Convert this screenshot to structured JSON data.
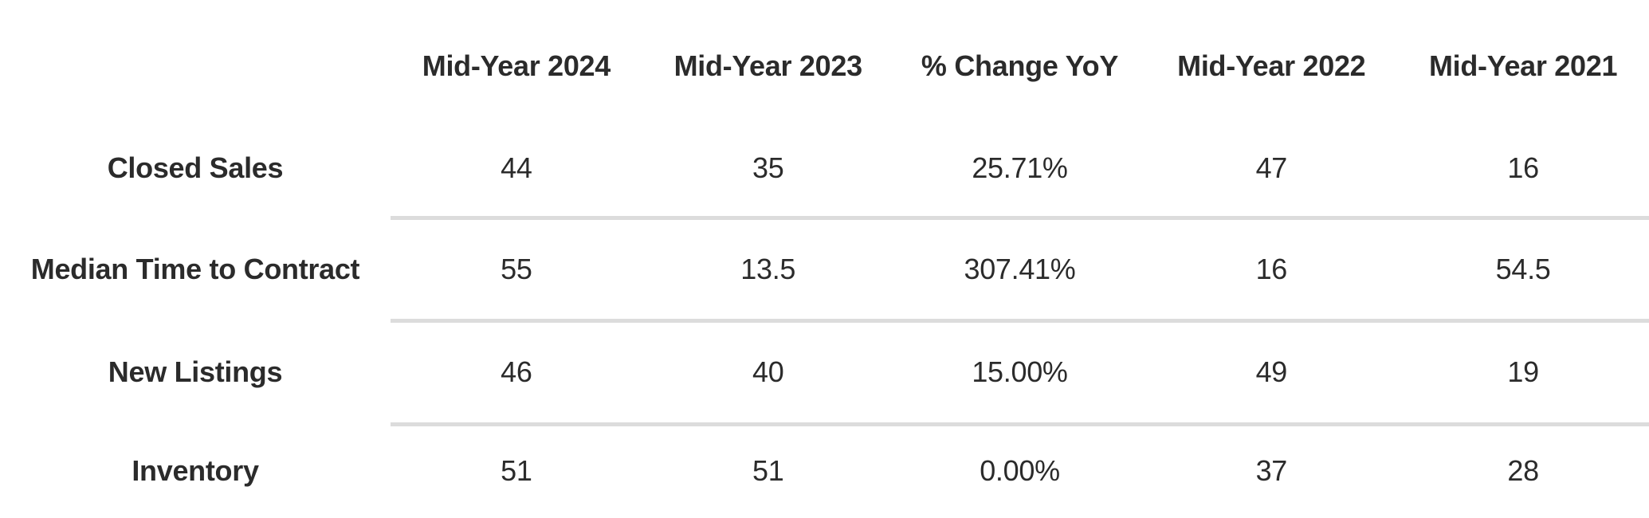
{
  "chart_data": {
    "type": "table",
    "columns": [
      "Mid-Year 2024",
      "Mid-Year 2023",
      "% Change YoY",
      "Mid-Year 2022",
      "Mid-Year 2021"
    ],
    "rows": [
      {
        "label": "Closed Sales",
        "values": [
          "44",
          "35",
          "25.71%",
          "47",
          "16"
        ]
      },
      {
        "label": "Median Time to Contract",
        "values": [
          "55",
          "13.5",
          "307.41%",
          "16",
          "54.5"
        ]
      },
      {
        "label": "New Listings",
        "values": [
          "46",
          "40",
          "15.00%",
          "49",
          "19"
        ]
      },
      {
        "label": "Inventory",
        "values": [
          "51",
          "51",
          "0.00%",
          "37",
          "28"
        ]
      }
    ]
  },
  "colors": {
    "text": "#2b2b2b",
    "divider": "#dcdcdc",
    "background": "#ffffff"
  }
}
